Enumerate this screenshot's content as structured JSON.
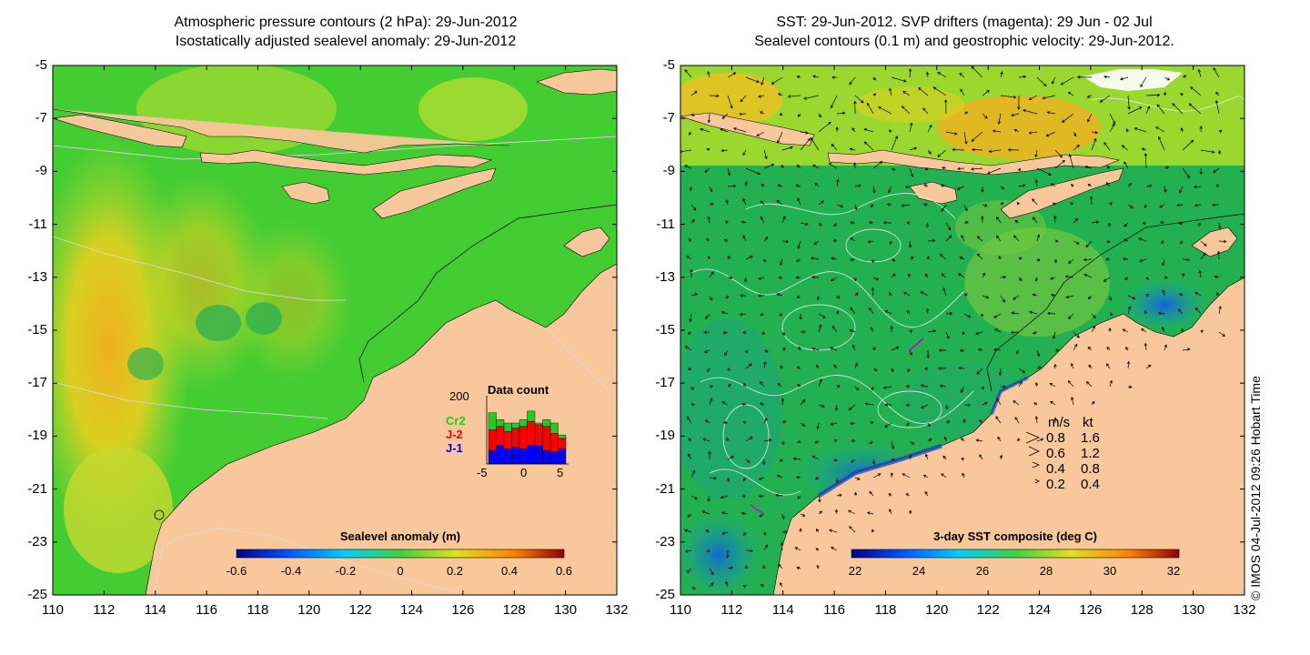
{
  "left_panel": {
    "title_line1": "Atmospheric pressure contours (2 hPa): 29-Jun-2012",
    "title_line2": "Isostatically adjusted sealevel anomaly: 29-Jun-2012",
    "colorbar_label": "Sealevel anomaly (m)",
    "colorbar_ticks": [
      "-0.6",
      "-0.4",
      "-0.2",
      "0",
      "0.2",
      "0.4",
      "0.6"
    ],
    "inset": {
      "title": "Data count",
      "y_tick": "200",
      "x_ticks": [
        "-5",
        "0",
        "5"
      ],
      "legend": [
        {
          "label": "Cr2",
          "color": "#22cc22"
        },
        {
          "label": "J-2",
          "color": "#ff0000"
        },
        {
          "label": "J-1",
          "color": "#0000ff"
        }
      ],
      "bars_j1": [
        40,
        55,
        45,
        50,
        45,
        55,
        55,
        40,
        35,
        45
      ],
      "bars_j2": [
        60,
        55,
        50,
        55,
        65,
        70,
        60,
        70,
        55,
        30
      ],
      "bars_cr2": [
        50,
        20,
        25,
        15,
        20,
        30,
        5,
        20,
        30,
        10
      ]
    }
  },
  "right_panel": {
    "title_line1": "SST: 29-Jun-2012. SVP drifters (magenta): 29 Jun - 02 Jul",
    "title_line2": "Sealevel contours (0.1 m) and geostrophic velocity: 29-Jun-2012.",
    "colorbar_label": "3-day SST composite (deg C)",
    "colorbar_ticks": [
      "22",
      "24",
      "26",
      "28",
      "30",
      "32"
    ],
    "velocity_legend": {
      "header_ms": "m/s",
      "header_kt": "kt",
      "rows": [
        {
          "ms": "0.8",
          "kt": "1.6"
        },
        {
          "ms": "0.6",
          "kt": "1.2"
        },
        {
          "ms": "0.4",
          "kt": "0.8"
        },
        {
          "ms": "0.2",
          "kt": "0.4"
        }
      ]
    }
  },
  "axes": {
    "y_ticks": [
      "-5",
      "-7",
      "-9",
      "-11",
      "-13",
      "-15",
      "-17",
      "-19",
      "-21",
      "-23",
      "-25"
    ],
    "x_ticks": [
      "110",
      "112",
      "114",
      "116",
      "118",
      "120",
      "122",
      "124",
      "126",
      "128",
      "130",
      "132"
    ]
  },
  "credit": "© IMOS 04-Jul-2012 09:26 Hobart Time",
  "colors": {
    "land": "#f8c79b",
    "ocean_green": "#33cc33",
    "anomaly_yellow": "#c8e020",
    "anomaly_orange": "#f0b020"
  }
}
